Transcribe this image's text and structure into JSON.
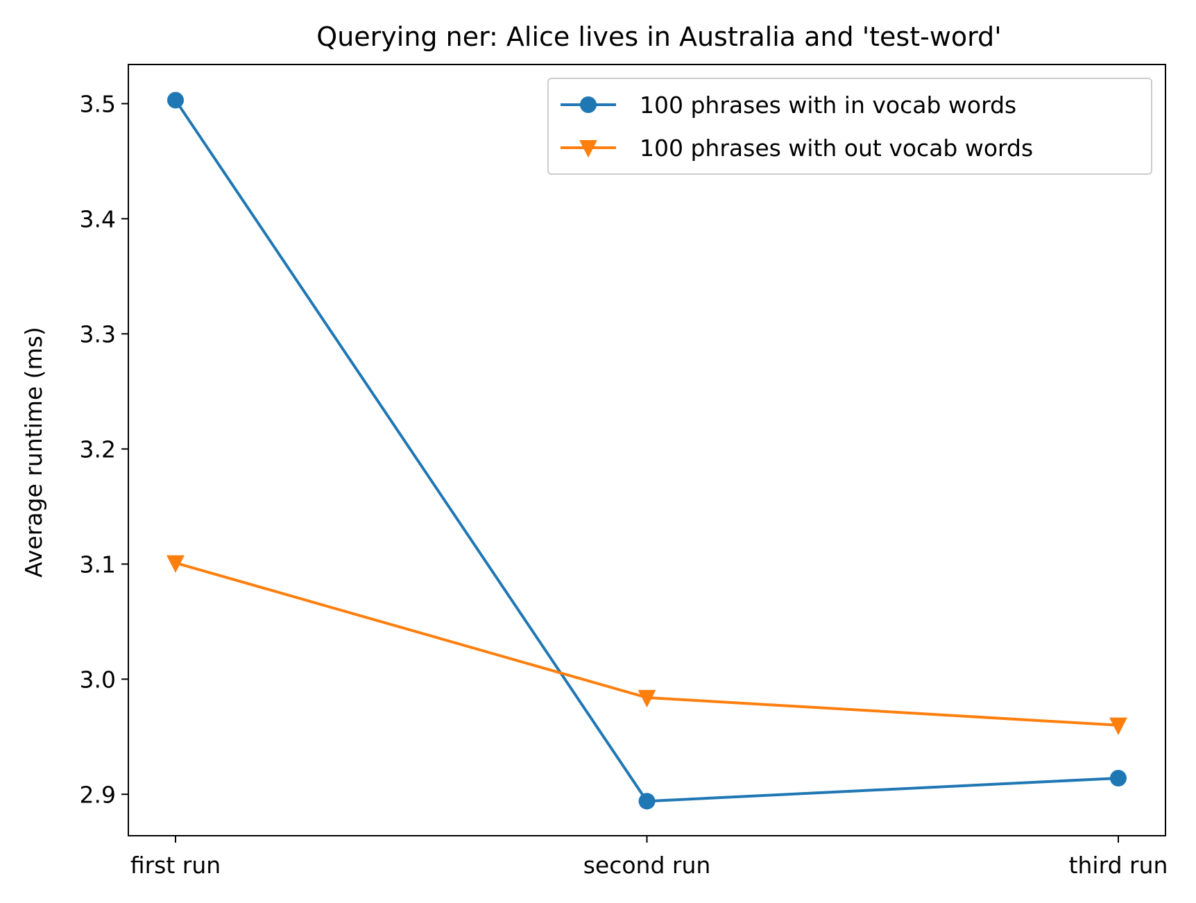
{
  "chart_data": {
    "type": "line",
    "title": "Querying ner: Alice lives in Australia and 'test-word'",
    "xlabel": "",
    "ylabel": "Average runtime (ms)",
    "categories": [
      "first run",
      "second run",
      "third run"
    ],
    "ylim": [
      2.864,
      3.534
    ],
    "yticks": [
      2.9,
      3.0,
      3.1,
      3.2,
      3.3,
      3.4,
      3.5
    ],
    "ytick_labels": [
      "2.9",
      "3.0",
      "3.1",
      "3.2",
      "3.3",
      "3.4",
      "3.5"
    ],
    "grid": false,
    "legend_position": "upper right",
    "series": [
      {
        "name": "100 phrases with in vocab words",
        "values": [
          3.503,
          2.894,
          2.914
        ],
        "color": "#1f77b4",
        "marker": "circle"
      },
      {
        "name": "100 phrases with out vocab words",
        "values": [
          3.101,
          2.984,
          2.96
        ],
        "color": "#ff7f0e",
        "marker": "triangle-down"
      }
    ]
  }
}
